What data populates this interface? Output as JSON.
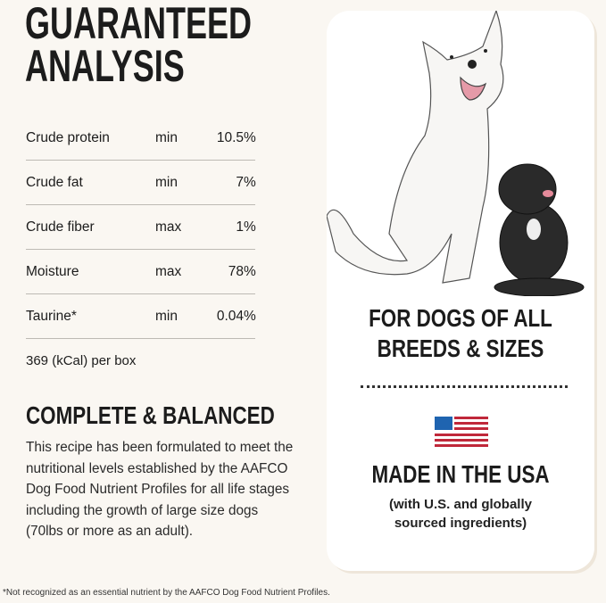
{
  "title_lines": [
    "GUARANTEED",
    "ANALYSIS"
  ],
  "analysis": [
    {
      "nutrient": "Crude protein",
      "qualifier": "min",
      "value": "10.5",
      "unit": "%"
    },
    {
      "nutrient": "Crude fat",
      "qualifier": "min",
      "value": "7",
      "unit": "%"
    },
    {
      "nutrient": "Crude fiber",
      "qualifier": "max",
      "value": "1",
      "unit": "%"
    },
    {
      "nutrient": "Moisture",
      "qualifier": "max",
      "value": "78",
      "unit": "%"
    },
    {
      "nutrient": "Taurine*",
      "qualifier": "min",
      "value": "0.04",
      "unit": "%"
    }
  ],
  "calories": "369 (kCal) per box",
  "balanced": {
    "heading": "COMPLETE & BALANCED",
    "text": "This recipe has been formulated to meet the nutritional levels established by the AAFCO Dog Food Nutrient Profiles for all life stages including the growth of large size dogs (70lbs or more as an adult)."
  },
  "footnote": "*Not recognized as an essential nutrient by the AAFCO Dog Food Nutrient Profiles.",
  "card": {
    "illustration": "white-dog-and-black-puppy",
    "breeds_lines": [
      "FOR DOGS OF ALL",
      "BREEDS & SIZES"
    ],
    "flag_icon": "us-flag-icon",
    "made_in": "MADE IN THE USA",
    "sourced_lines": [
      "(with U.S. and globally",
      "sourced ingredients)"
    ]
  },
  "colors": {
    "background": "#faf7f2",
    "flag_blue": "#1f64b0",
    "flag_red": "#c0283a"
  }
}
